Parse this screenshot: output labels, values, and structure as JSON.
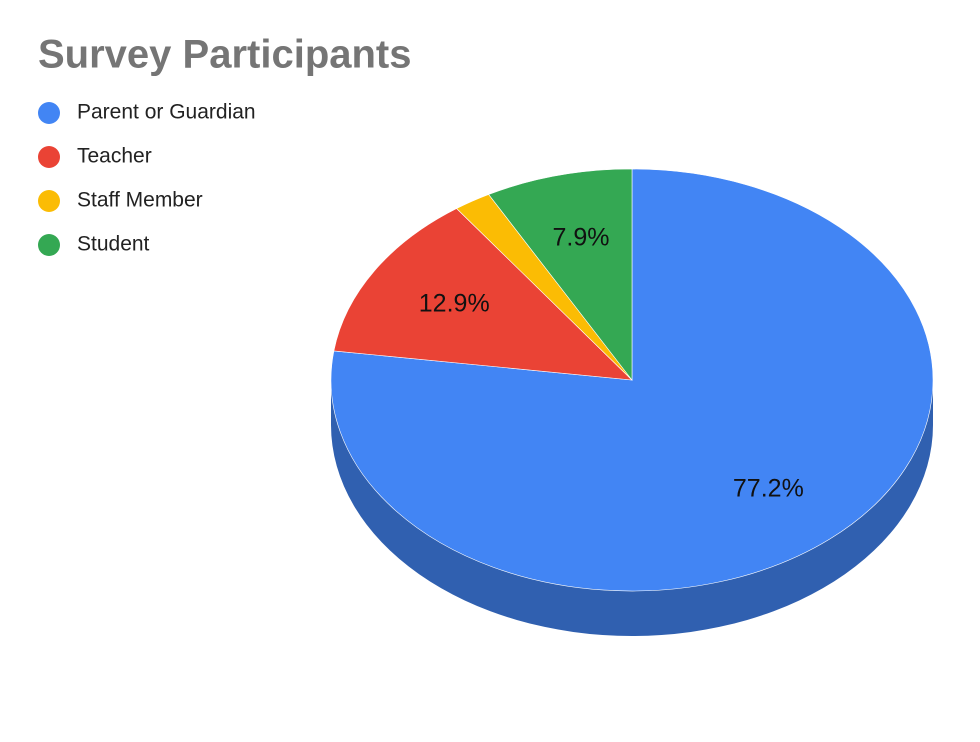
{
  "chart_data": {
    "type": "pie",
    "title": "Survey Participants",
    "categories": [
      "Parent or Guardian",
      "Teacher",
      "Staff Member",
      "Student"
    ],
    "values": [
      77.2,
      12.9,
      2.0,
      7.9
    ],
    "value_labels": [
      "77.2%",
      "12.9%",
      null,
      "7.9%"
    ],
    "colors": [
      "#4285f4",
      "#ea4335",
      "#fbbc04",
      "#34a853"
    ],
    "three_d": true,
    "legend": "top-left"
  }
}
